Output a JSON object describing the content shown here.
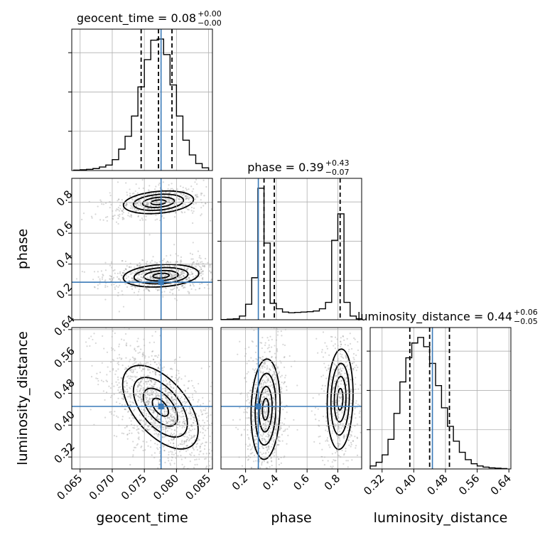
{
  "chart_data": {
    "type": "corner",
    "parameters": [
      "geocent_time",
      "phase",
      "luminosity_distance"
    ],
    "titles": [
      {
        "param": "geocent_time",
        "text": "geocent_time = 0.08",
        "plus": "+0.00",
        "minus": "−0.00"
      },
      {
        "param": "phase",
        "text": "phase = 0.39",
        "plus": "+0.43",
        "minus": "−0.07"
      },
      {
        "param": "luminosity_distance",
        "text": "luminosity_distance = 0.44",
        "plus": "+0.06",
        "minus": "−0.05"
      }
    ],
    "ranges": {
      "geocent_time": [
        0.0637,
        0.0856
      ],
      "phase": [
        0.04,
        0.955
      ],
      "luminosity_distance": [
        0.29,
        0.645
      ]
    },
    "ticks": {
      "geocent_time": [
        "0.065",
        "0.070",
        "0.075",
        "0.080",
        "0.085"
      ],
      "phase": [
        "0.2",
        "0.4",
        "0.6",
        "0.8"
      ],
      "luminosity_distance": [
        "0.32",
        "0.40",
        "0.48",
        "0.56",
        "0.64"
      ]
    },
    "truths": {
      "geocent_time": 0.0776,
      "phase": 0.283,
      "luminosity_distance": 0.447
    },
    "quantiles": {
      "geocent_time": [
        0.0745,
        0.0772,
        0.0793
      ],
      "phase": [
        0.32,
        0.387,
        0.815
      ],
      "luminosity_distance": [
        0.39,
        0.44,
        0.49
      ]
    },
    "histograms": {
      "geocent_time": {
        "edges": [
          0.064,
          0.065,
          0.066,
          0.067,
          0.068,
          0.069,
          0.07,
          0.071,
          0.072,
          0.073,
          0.074,
          0.075,
          0.076,
          0.077,
          0.078,
          0.079,
          0.08,
          0.081,
          0.082,
          0.083,
          0.084,
          0.085
        ],
        "counts": [
          1,
          2,
          3,
          5,
          9,
          14,
          28,
          55,
          88,
          140,
          215,
          285,
          335,
          338,
          298,
          220,
          140,
          78,
          40,
          18,
          7
        ]
      },
      "phase": {
        "edges": [
          0.04,
          0.08,
          0.12,
          0.16,
          0.2,
          0.24,
          0.28,
          0.32,
          0.36,
          0.4,
          0.44,
          0.48,
          0.52,
          0.56,
          0.6,
          0.64,
          0.68,
          0.72,
          0.76,
          0.8,
          0.84,
          0.88,
          0.92,
          0.955
        ],
        "counts": [
          1,
          3,
          5,
          20,
          85,
          230,
          720,
          420,
          90,
          60,
          42,
          38,
          40,
          42,
          44,
          48,
          60,
          95,
          435,
          580,
          95,
          20,
          5
        ]
      },
      "luminosity_distance": {
        "edges": [
          0.29,
          0.305,
          0.32,
          0.335,
          0.35,
          0.365,
          0.38,
          0.395,
          0.41,
          0.425,
          0.44,
          0.455,
          0.47,
          0.485,
          0.5,
          0.515,
          0.53,
          0.545,
          0.56,
          0.575,
          0.59,
          0.605,
          0.62,
          0.635
        ],
        "counts": [
          8,
          18,
          38,
          80,
          150,
          235,
          300,
          340,
          355,
          330,
          285,
          225,
          165,
          115,
          75,
          45,
          25,
          14,
          8,
          5,
          3,
          2,
          1
        ]
      }
    },
    "joint_modes": {
      "geocent_time_phase": [
        {
          "x": 0.0772,
          "y": 0.8,
          "sx": 0.0026,
          "sy": 0.035,
          "rho": 0.25,
          "weight": 0.4
        },
        {
          "x": 0.0776,
          "y": 0.325,
          "sx": 0.0028,
          "sy": 0.035,
          "rho": 0.2,
          "weight": 0.6
        }
      ],
      "geocent_time_luminosity_distance": [
        {
          "x": 0.0775,
          "y": 0.445,
          "sx": 0.0028,
          "sy": 0.05,
          "rho": -0.55,
          "weight": 1.0
        }
      ],
      "phase_luminosity_distance": [
        {
          "x": 0.33,
          "y": 0.44,
          "sx": 0.045,
          "sy": 0.06,
          "rho": 0.1,
          "weight": 0.6
        },
        {
          "x": 0.815,
          "y": 0.465,
          "sx": 0.04,
          "sy": 0.06,
          "rho": 0.1,
          "weight": 0.4
        }
      ]
    },
    "colors": {
      "truth": "#3a7ab8",
      "scatter": "#8c8c8c",
      "line": "#000000"
    }
  }
}
